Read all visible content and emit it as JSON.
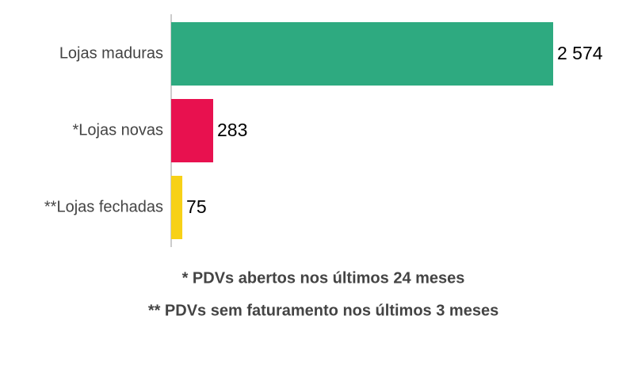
{
  "chart_data": {
    "type": "bar",
    "orientation": "horizontal",
    "categories": [
      "Lojas maduras",
      "*Lojas novas",
      "**Lojas fechadas"
    ],
    "values": [
      2574,
      283,
      75
    ],
    "value_labels": [
      "2 574",
      "283",
      "75"
    ],
    "colors": [
      "#2eaa80",
      "#e8114f",
      "#f7d117"
    ],
    "annotations": [
      "* PDVs abertos nos últimos 24 meses",
      "** PDVs sem faturamento nos últimos 3 meses"
    ]
  }
}
